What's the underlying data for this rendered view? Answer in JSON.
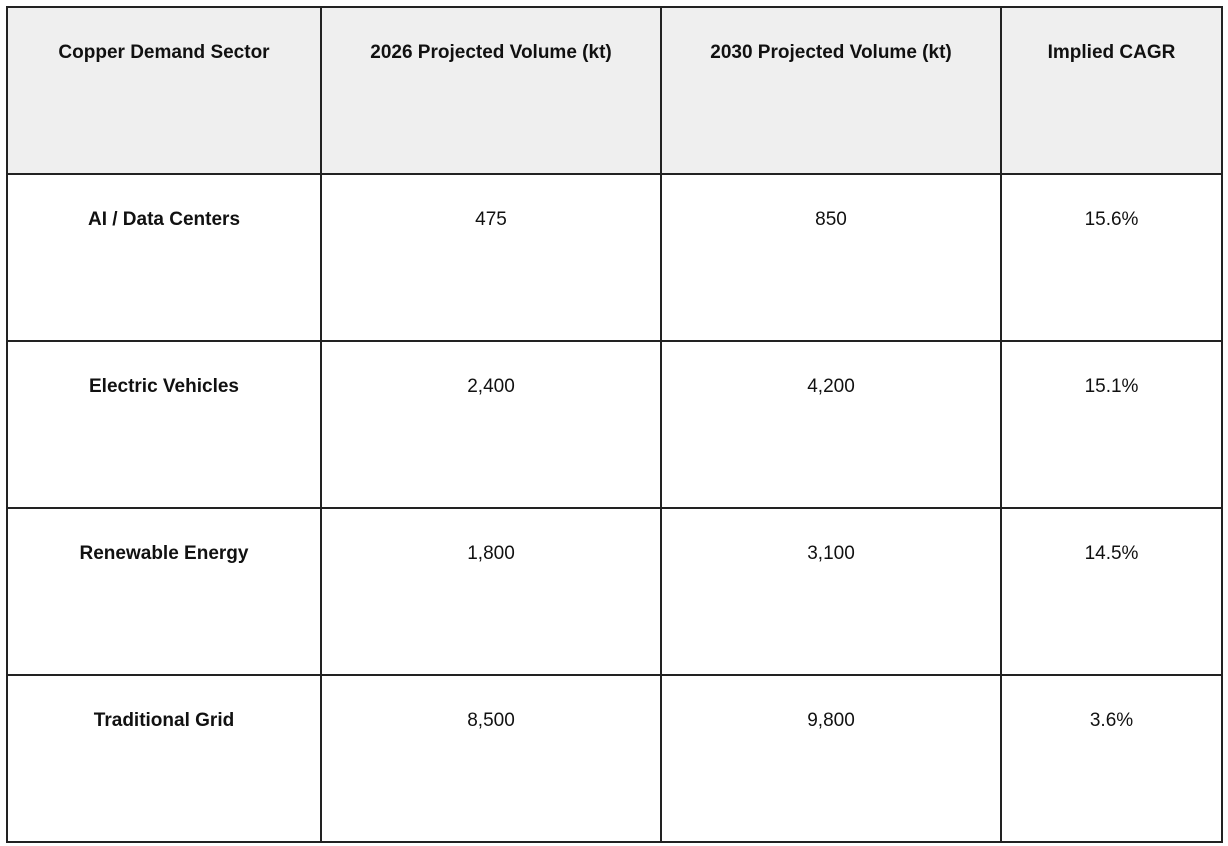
{
  "table": {
    "header": [
      "Copper Demand Sector",
      "2026 Projected Volume (kt)",
      "2030 Projected Volume (kt)",
      "Implied CAGR"
    ],
    "rows": [
      [
        "AI / Data Centers",
        "475",
        "850",
        "15.6%"
      ],
      [
        "Electric Vehicles",
        "2,400",
        "4,200",
        "15.1%"
      ],
      [
        "Renewable Energy",
        "1,800",
        "3,100",
        "14.5%"
      ],
      [
        "Traditional Grid",
        "8,500",
        "9,800",
        "3.6%"
      ]
    ]
  }
}
